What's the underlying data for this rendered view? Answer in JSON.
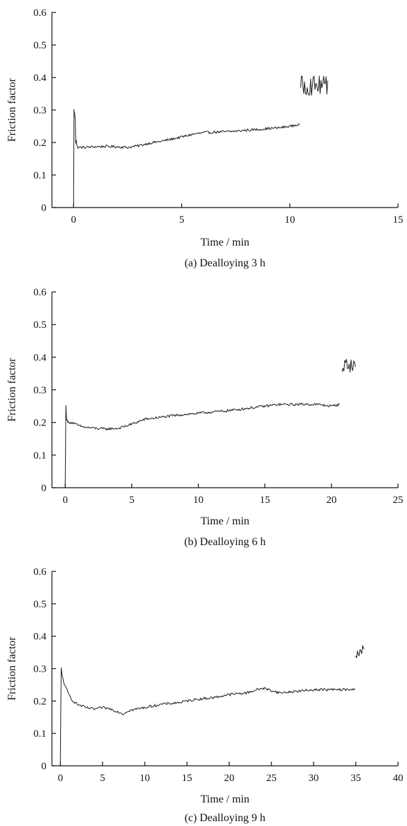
{
  "chart_data": [
    {
      "type": "line",
      "caption": "(a) Dealloying 3 h",
      "xlabel": "Time / min",
      "ylabel": "Friction factor",
      "xlim": [
        -1,
        15
      ],
      "ylim": [
        0,
        0.6
      ],
      "xticks": [
        0,
        5,
        10,
        15
      ],
      "yticks": [
        0,
        0.1,
        0.2,
        0.3,
        0.4,
        0.5,
        0.6
      ],
      "ytick_labels": [
        "0",
        "0.1",
        "0.2",
        "0.3",
        "0.4",
        "0.5",
        "0.6"
      ],
      "grid": false,
      "color": "#1a1a1a",
      "noise": 0.004,
      "spike_start": 10.5,
      "spike_center": 0.375,
      "spike_amp": 0.03,
      "series": [
        {
          "x": [
            0,
            0.02,
            0.05,
            0.08,
            0.1,
            0.12,
            0.15,
            0.2,
            0.5,
            1,
            1.5,
            2,
            2.5,
            3,
            3.5,
            4,
            4.5,
            5,
            5.5,
            6,
            6.5,
            7,
            7.5,
            8,
            8.5,
            9,
            9.5,
            10,
            10.45
          ],
          "y": [
            0,
            0.3,
            0.29,
            0.27,
            0.2,
            0.21,
            0.19,
            0.185,
            0.185,
            0.187,
            0.188,
            0.187,
            0.185,
            0.19,
            0.198,
            0.203,
            0.21,
            0.217,
            0.225,
            0.23,
            0.232,
            0.233,
            0.235,
            0.238,
            0.24,
            0.243,
            0.245,
            0.25,
            0.255
          ]
        },
        {
          "x": [
            10.5,
            10.6,
            10.8,
            11,
            11.2,
            11.4,
            11.6,
            11.75
          ],
          "y": [
            0.4,
            0.38,
            0.37,
            0.36,
            0.37,
            0.38,
            0.38,
            0.39
          ]
        }
      ]
    },
    {
      "type": "line",
      "caption": "(b) Dealloying 6 h",
      "xlabel": "Time / min",
      "ylabel": "Friction factor",
      "xlim": [
        -1,
        25
      ],
      "ylim": [
        0,
        0.6
      ],
      "xticks": [
        0,
        5,
        10,
        15,
        20,
        25
      ],
      "yticks": [
        0,
        0.1,
        0.2,
        0.3,
        0.4,
        0.5,
        0.6
      ],
      "ytick_labels": [
        "0",
        "0.1",
        "0.2",
        "0.3",
        "0.4",
        "0.5",
        "0.6"
      ],
      "grid": false,
      "color": "#1a1a1a",
      "noise": 0.004,
      "spike_start": 20.8,
      "spike_center": 0.375,
      "spike_amp": 0.022,
      "series": [
        {
          "x": [
            0,
            0.05,
            0.1,
            0.2,
            0.5,
            1,
            1.5,
            2,
            3,
            4,
            5,
            6,
            7,
            8,
            9,
            10,
            11,
            12,
            13,
            14,
            15,
            16,
            17,
            18,
            19,
            20,
            20.6
          ],
          "y": [
            0,
            0.25,
            0.21,
            0.2,
            0.2,
            0.19,
            0.185,
            0.183,
            0.18,
            0.182,
            0.195,
            0.21,
            0.215,
            0.22,
            0.225,
            0.228,
            0.232,
            0.235,
            0.24,
            0.245,
            0.25,
            0.255,
            0.255,
            0.256,
            0.255,
            0.25,
            0.255
          ]
        },
        {
          "x": [
            20.8,
            21,
            21.2,
            21.4,
            21.6,
            21.8
          ],
          "y": [
            0.41,
            0.39,
            0.37,
            0.38,
            0.36,
            0.37
          ]
        }
      ]
    },
    {
      "type": "line",
      "caption": "(c) Dealloying 9 h",
      "xlabel": "Time / min",
      "ylabel": "Friction factor",
      "xlim": [
        -1,
        40
      ],
      "ylim": [
        0,
        0.6
      ],
      "xticks": [
        0,
        5,
        10,
        15,
        20,
        25,
        30,
        35,
        40
      ],
      "yticks": [
        0,
        0.1,
        0.2,
        0.3,
        0.4,
        0.5,
        0.6
      ],
      "ytick_labels": [
        "0",
        "0.1",
        "0.2",
        "0.3",
        "0.4",
        "0.5",
        "0.6"
      ],
      "grid": false,
      "color": "#1a1a1a",
      "noise": 0.004,
      "spike_start": 35.0,
      "spike_center": 0.355,
      "spike_amp": 0.022,
      "series": [
        {
          "x": [
            0,
            0.1,
            0.2,
            0.5,
            1,
            1.5,
            2,
            3,
            4,
            5,
            6,
            7,
            7.5,
            8,
            9,
            10,
            12,
            14,
            16,
            18,
            20,
            22,
            24,
            26,
            28,
            30,
            32,
            34,
            34.9
          ],
          "y": [
            0,
            0.3,
            0.28,
            0.25,
            0.22,
            0.2,
            0.19,
            0.18,
            0.175,
            0.18,
            0.175,
            0.165,
            0.16,
            0.17,
            0.175,
            0.18,
            0.19,
            0.195,
            0.205,
            0.21,
            0.22,
            0.225,
            0.24,
            0.225,
            0.23,
            0.235,
            0.235,
            0.235,
            0.235
          ]
        },
        {
          "x": [
            35,
            35.2,
            35.4,
            35.6,
            35.8,
            36
          ],
          "y": [
            0.41,
            0.36,
            0.33,
            0.36,
            0.35,
            0.36
          ]
        }
      ]
    }
  ]
}
